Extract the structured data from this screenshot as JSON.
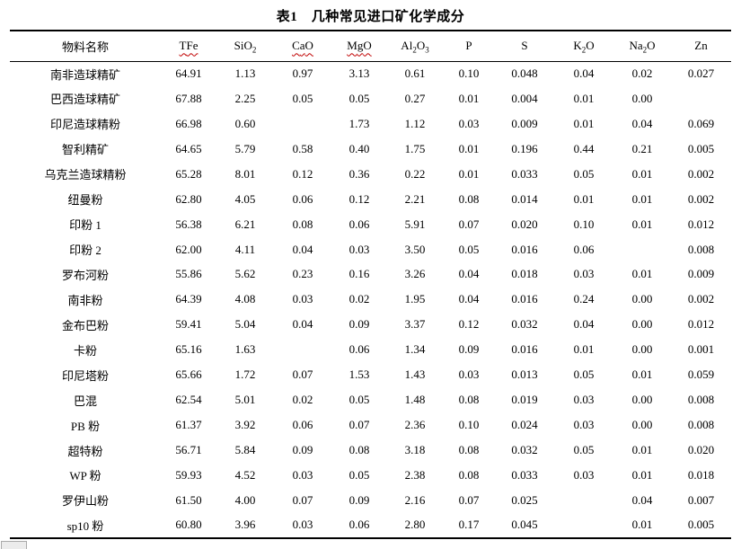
{
  "title": "表1　几种常见进口矿化学成分",
  "colors": {
    "spellcheck_wavy": "#c00000",
    "table_rule": "#000000",
    "page_background": "#ffffff"
  },
  "table": {
    "columns": [
      {
        "key": "name",
        "label": "物料名称",
        "wavy": false
      },
      {
        "key": "tfe",
        "label": "TFe",
        "wavy": true
      },
      {
        "key": "sio2",
        "label": "SiO₂",
        "wavy": false
      },
      {
        "key": "cao",
        "label": "CaO",
        "wavy": true
      },
      {
        "key": "mgo",
        "label": "MgO",
        "wavy": true
      },
      {
        "key": "al2o3",
        "label": "Al₂O₃",
        "wavy": false
      },
      {
        "key": "p",
        "label": "P",
        "wavy": false
      },
      {
        "key": "s",
        "label": "S",
        "wavy": false
      },
      {
        "key": "k2o",
        "label": "K₂O",
        "wavy": false
      },
      {
        "key": "na2o",
        "label": "Na₂O",
        "wavy": false
      },
      {
        "key": "zn",
        "label": "Zn",
        "wavy": false
      }
    ],
    "rows": [
      {
        "name": "南非造球精矿",
        "values": [
          "64.91",
          "1.13",
          "0.97",
          "3.13",
          "0.61",
          "0.10",
          "0.048",
          "0.04",
          "0.02",
          "0.027"
        ]
      },
      {
        "name": "巴西造球精矿",
        "values": [
          "67.88",
          "2.25",
          "0.05",
          "0.05",
          "0.27",
          "0.01",
          "0.004",
          "0.01",
          "0.00",
          ""
        ]
      },
      {
        "name": "印尼造球精粉",
        "values": [
          "66.98",
          "0.60",
          "",
          "1.73",
          "1.12",
          "0.03",
          "0.009",
          "0.01",
          "0.04",
          "0.069"
        ]
      },
      {
        "name": "智利精矿",
        "values": [
          "64.65",
          "5.79",
          "0.58",
          "0.40",
          "1.75",
          "0.01",
          "0.196",
          "0.44",
          "0.21",
          "0.005"
        ]
      },
      {
        "name": "乌克兰造球精粉",
        "values": [
          "65.28",
          "8.01",
          "0.12",
          "0.36",
          "0.22",
          "0.01",
          "0.033",
          "0.05",
          "0.01",
          "0.002"
        ]
      },
      {
        "name": "纽曼粉",
        "values": [
          "62.80",
          "4.05",
          "0.06",
          "0.12",
          "2.21",
          "0.08",
          "0.014",
          "0.01",
          "0.01",
          "0.002"
        ]
      },
      {
        "name": "印粉 1",
        "values": [
          "56.38",
          "6.21",
          "0.08",
          "0.06",
          "5.91",
          "0.07",
          "0.020",
          "0.10",
          "0.01",
          "0.012"
        ]
      },
      {
        "name": "印粉 2",
        "values": [
          "62.00",
          "4.11",
          "0.04",
          "0.03",
          "3.50",
          "0.05",
          "0.016",
          "0.06",
          "",
          "0.008"
        ]
      },
      {
        "name": "罗布河粉",
        "values": [
          "55.86",
          "5.62",
          "0.23",
          "0.16",
          "3.26",
          "0.04",
          "0.018",
          "0.03",
          "0.01",
          "0.009"
        ]
      },
      {
        "name": "南非粉",
        "values": [
          "64.39",
          "4.08",
          "0.03",
          "0.02",
          "1.95",
          "0.04",
          "0.016",
          "0.24",
          "0.00",
          "0.002"
        ]
      },
      {
        "name": "金布巴粉",
        "values": [
          "59.41",
          "5.04",
          "0.04",
          "0.09",
          "3.37",
          "0.12",
          "0.032",
          "0.04",
          "0.00",
          "0.012"
        ]
      },
      {
        "name": "卡粉",
        "values": [
          "65.16",
          "1.63",
          "",
          "0.06",
          "1.34",
          "0.09",
          "0.016",
          "0.01",
          "0.00",
          "0.001"
        ]
      },
      {
        "name": "印尼塔粉",
        "values": [
          "65.66",
          "1.72",
          "0.07",
          "1.53",
          "1.43",
          "0.03",
          "0.013",
          "0.05",
          "0.01",
          "0.059"
        ]
      },
      {
        "name": "巴混",
        "values": [
          "62.54",
          "5.01",
          "0.02",
          "0.05",
          "1.48",
          "0.08",
          "0.019",
          "0.03",
          "0.00",
          "0.008"
        ]
      },
      {
        "name": "PB 粉",
        "values": [
          "61.37",
          "3.92",
          "0.06",
          "0.07",
          "2.36",
          "0.10",
          "0.024",
          "0.03",
          "0.00",
          "0.008"
        ]
      },
      {
        "name": "超特粉",
        "values": [
          "56.71",
          "5.84",
          "0.09",
          "0.08",
          "3.18",
          "0.08",
          "0.032",
          "0.05",
          "0.01",
          "0.020"
        ]
      },
      {
        "name": "WP 粉",
        "values": [
          "59.93",
          "4.52",
          "0.03",
          "0.05",
          "2.38",
          "0.08",
          "0.033",
          "0.03",
          "0.01",
          "0.018"
        ]
      },
      {
        "name": "罗伊山粉",
        "values": [
          "61.50",
          "4.00",
          "0.07",
          "0.09",
          "2.16",
          "0.07",
          "0.025",
          "",
          "0.04",
          "0.007"
        ]
      },
      {
        "name": "sp10 粉",
        "values": [
          "60.80",
          "3.96",
          "0.03",
          "0.06",
          "2.80",
          "0.17",
          "0.045",
          "",
          "0.01",
          "0.005"
        ]
      }
    ]
  }
}
